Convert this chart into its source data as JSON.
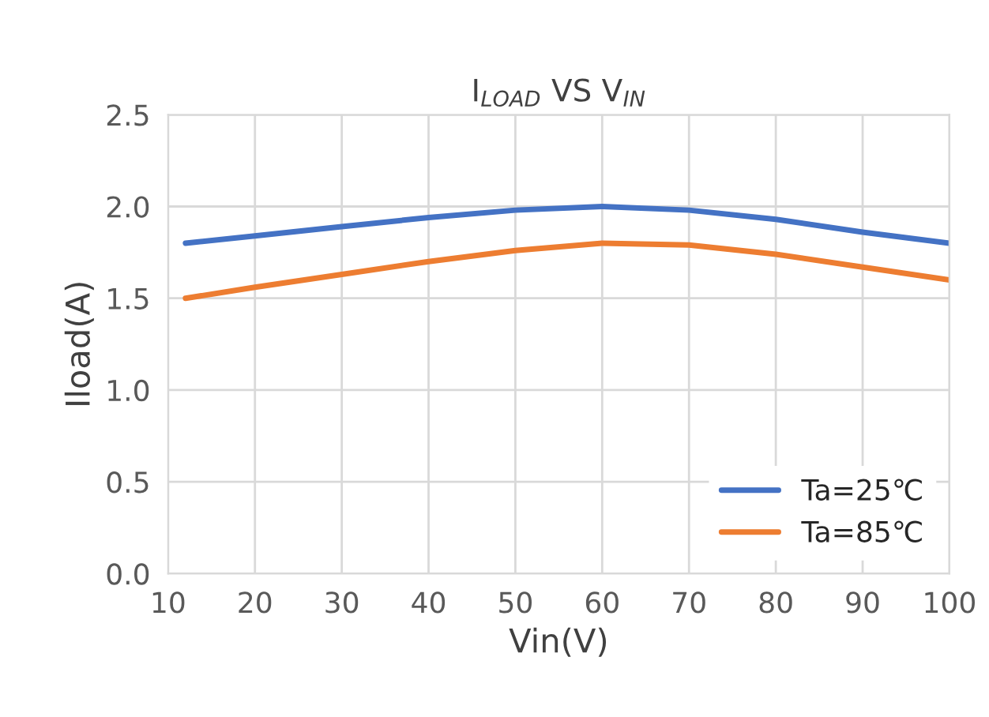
{
  "chart_data": {
    "type": "line",
    "title": "I$_{LOAD}$ VS V$_{IN}$",
    "xlabel": "Vin(V)",
    "ylabel": "Iload(A)",
    "x": [
      12,
      20,
      30,
      40,
      50,
      60,
      70,
      80,
      90,
      100
    ],
    "series": [
      {
        "name": "Ta=25℃",
        "color": "#4472c4",
        "values": [
          1.8,
          1.84,
          1.89,
          1.94,
          1.98,
          2.0,
          1.98,
          1.93,
          1.86,
          1.8
        ]
      },
      {
        "name": "Ta=85℃",
        "color": "#ed7d31",
        "values": [
          1.5,
          1.56,
          1.63,
          1.7,
          1.76,
          1.8,
          1.79,
          1.74,
          1.67,
          1.6
        ]
      }
    ],
    "xlim": [
      10,
      100
    ],
    "xticks": [
      10,
      20,
      30,
      40,
      50,
      60,
      70,
      80,
      90,
      100
    ],
    "ylim": [
      0,
      2.5
    ],
    "yticks": [
      {
        "value": 0,
        "label": "0.0"
      },
      {
        "value": 0.5,
        "label": "0.5"
      },
      {
        "value": 1.0,
        "label": "1.0"
      },
      {
        "value": 1.5,
        "label": "1.5"
      },
      {
        "value": 2.0,
        "label": "2.0"
      },
      {
        "value": 2.5,
        "label": "2.5"
      }
    ],
    "grid": true,
    "legend": "bottom right",
    "marker": "none",
    "line_style": "solid"
  }
}
